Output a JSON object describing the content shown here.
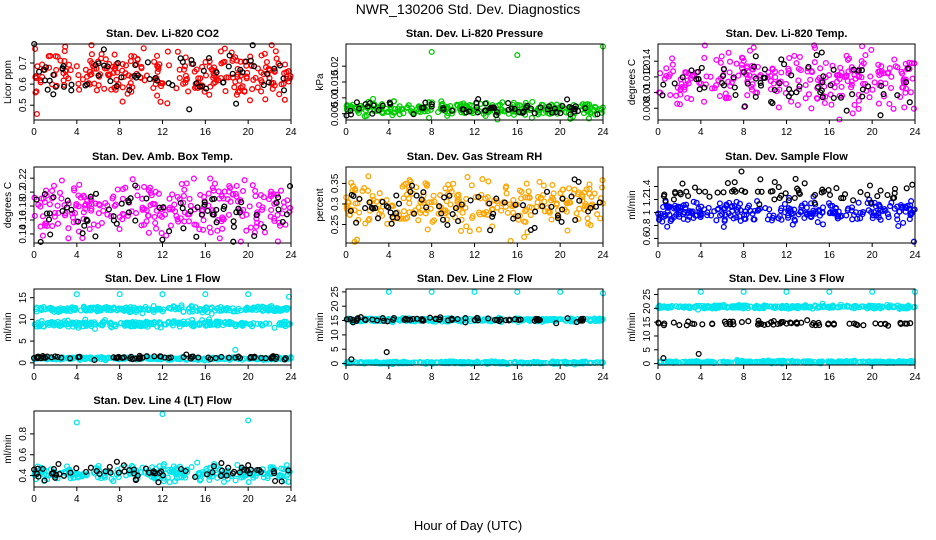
{
  "figure": {
    "title": "NWR_130206 Std. Dev. Diagnostics",
    "xlabel": "Hour of Day (UTC)"
  },
  "chart_data": [
    {
      "type": "scatter",
      "title": "Stan. Dev. Li-820 CO2",
      "ylabel": "Licor ppm",
      "xlim": [
        0,
        24
      ],
      "xticks": [
        0,
        4,
        8,
        12,
        16,
        20,
        24
      ],
      "ylim": [
        0.43,
        0.79
      ],
      "yticks": [
        0.5,
        0.6,
        0.7
      ],
      "series": [
        {
          "color": "#ff0000",
          "bands": [
            {
              "center": 0.65,
              "spread": 0.055
            }
          ]
        },
        {
          "color": "#000000",
          "bands": [
            {
              "center": 0.64,
              "spread": 0.055
            }
          ]
        }
      ]
    },
    {
      "type": "scatter",
      "title": "Stan. Dev. Li-820 Pressure",
      "ylabel": "kPa",
      "xlim": [
        0,
        24
      ],
      "xticks": [
        0,
        4,
        8,
        12,
        16,
        20,
        24
      ],
      "ylim": [
        0.003,
        0.027
      ],
      "yticks": [
        0.005,
        0.01,
        0.015,
        0.02
      ],
      "series": [
        {
          "color": "#00cc00",
          "bands": [
            {
              "center": 0.0063,
              "spread": 0.0011
            }
          ]
        },
        {
          "color": "#000000",
          "bands": [
            {
              "center": 0.0066,
              "spread": 0.0012
            }
          ]
        }
      ],
      "outliers": [
        {
          "x": 8.0,
          "y": 0.0245,
          "color": "#00cc00"
        },
        {
          "x": 16.0,
          "y": 0.0235,
          "color": "#00cc00"
        },
        {
          "x": 24.0,
          "y": 0.0262,
          "color": "#00cc00"
        }
      ]
    },
    {
      "type": "scatter",
      "title": "Stan. Dev. Li-820 Temp.",
      "ylabel": "degrees C",
      "xlim": [
        0,
        24
      ],
      "xticks": [
        0,
        4,
        8,
        12,
        16,
        20,
        24
      ],
      "ylim": [
        0.0065,
        0.0162
      ],
      "yticks": [
        0.008,
        0.01,
        0.012,
        0.014
      ],
      "series": [
        {
          "color": "#ff00ff",
          "bands": [
            {
              "center": 0.0117,
              "spread": 0.0018
            }
          ]
        },
        {
          "color": "#000000",
          "bands": [
            {
              "center": 0.0113,
              "spread": 0.0016
            }
          ]
        }
      ]
    },
    {
      "type": "scatter",
      "title": "Stan. Dev. Amb. Box Temp.",
      "ylabel": "degrees C",
      "xlim": [
        0,
        24
      ],
      "xticks": [
        0,
        4,
        8,
        12,
        16,
        20,
        24
      ],
      "ylim": [
        0.127,
        0.236
      ],
      "yticks": [
        0.14,
        0.16,
        0.18,
        0.2,
        0.22
      ],
      "series": [
        {
          "color": "#ff00ff",
          "bands": [
            {
              "center": 0.174,
              "spread": 0.02
            }
          ]
        },
        {
          "color": "#000000",
          "bands": [
            {
              "center": 0.17,
              "spread": 0.018
            }
          ]
        }
      ]
    },
    {
      "type": "scatter",
      "title": "Stan. Dev. Gas Stream RH",
      "ylabel": "percent",
      "xlim": [
        0,
        24
      ],
      "xticks": [
        0,
        4,
        8,
        12,
        16,
        20,
        24
      ],
      "ylim": [
        0.205,
        0.39
      ],
      "yticks": [
        0.25,
        0.3,
        0.35
      ],
      "series": [
        {
          "color": "#ffa500",
          "bands": [
            {
              "center": 0.298,
              "spread": 0.03
            }
          ]
        },
        {
          "color": "#000000",
          "bands": [
            {
              "center": 0.295,
              "spread": 0.025
            }
          ]
        }
      ]
    },
    {
      "type": "scatter",
      "title": "Stan. Dev. Sample Flow",
      "ylabel": "ml/min",
      "xlim": [
        0,
        24
      ],
      "xticks": [
        0,
        4,
        8,
        12,
        16,
        20,
        24
      ],
      "ylim": [
        0.53,
        1.7
      ],
      "yticks": [
        0.6,
        0.8,
        1.0,
        1.2,
        1.4
      ],
      "series": [
        {
          "color": "#0000ff",
          "bands": [
            {
              "center": 1.0,
              "spread": 0.09
            }
          ]
        },
        {
          "color": "#000000",
          "bands": [
            {
              "center": 1.3,
              "spread": 0.1
            }
          ]
        }
      ],
      "outliers": [
        {
          "x": 7.8,
          "y": 1.63,
          "color": "#000000"
        },
        {
          "x": 23.9,
          "y": 0.55,
          "color": "#0000ff"
        }
      ]
    },
    {
      "type": "scatter",
      "title": "Stan. Dev. Line 1 Flow",
      "ylabel": "ml/min",
      "xlim": [
        0,
        24
      ],
      "xticks": [
        0,
        4,
        8,
        12,
        16,
        20,
        24
      ],
      "ylim": [
        -0.5,
        17
      ],
      "yticks": [
        0,
        5,
        10,
        15
      ],
      "series": [
        {
          "color": "#00e5ee",
          "bands": [
            {
              "center": 12.3,
              "spread": 0.3
            },
            {
              "center": 9.0,
              "spread": 0.35
            },
            {
              "center": 1.0,
              "spread": 0.15
            }
          ]
        },
        {
          "color": "#000000",
          "bands": [
            {
              "center": 1.2,
              "spread": 0.2
            }
          ]
        }
      ],
      "outliers": [
        {
          "x": 4.0,
          "y": 15.8,
          "color": "#00e5ee"
        },
        {
          "x": 8.0,
          "y": 15.8,
          "color": "#00e5ee"
        },
        {
          "x": 12.0,
          "y": 15.8,
          "color": "#00e5ee"
        },
        {
          "x": 16.0,
          "y": 15.8,
          "color": "#00e5ee"
        },
        {
          "x": 20.0,
          "y": 15.8,
          "color": "#00e5ee"
        },
        {
          "x": 23.8,
          "y": 15.2,
          "color": "#00e5ee"
        },
        {
          "x": 18.8,
          "y": 3.0,
          "color": "#00e5ee"
        }
      ]
    },
    {
      "type": "scatter",
      "title": "Stan. Dev. Line 2 Flow",
      "ylabel": "ml/min",
      "xlim": [
        0,
        24
      ],
      "xticks": [
        0,
        4,
        8,
        12,
        16,
        20,
        24
      ],
      "ylim": [
        -0.5,
        26
      ],
      "yticks": [
        0,
        5,
        10,
        15,
        20,
        25
      ],
      "series": [
        {
          "color": "#00e5ee",
          "bands": [
            {
              "center": 15.2,
              "spread": 0.3
            },
            {
              "center": 0.3,
              "spread": 0.2
            }
          ]
        },
        {
          "color": "#000000",
          "bands": [
            {
              "center": 15.3,
              "spread": 0.4
            }
          ]
        }
      ],
      "outliers": [
        {
          "x": 4.0,
          "y": 25.0,
          "color": "#00e5ee"
        },
        {
          "x": 8.0,
          "y": 25.0,
          "color": "#00e5ee"
        },
        {
          "x": 12.0,
          "y": 25.0,
          "color": "#00e5ee"
        },
        {
          "x": 16.0,
          "y": 25.0,
          "color": "#00e5ee"
        },
        {
          "x": 20.0,
          "y": 25.0,
          "color": "#00e5ee"
        },
        {
          "x": 24.0,
          "y": 24.5,
          "color": "#00e5ee"
        },
        {
          "x": 3.8,
          "y": 4.0,
          "color": "#000000"
        },
        {
          "x": 0.5,
          "y": 1.5,
          "color": "#000000"
        }
      ]
    },
    {
      "type": "scatter",
      "title": "Stan. Dev. Line 3 Flow",
      "ylabel": "ml/min",
      "xlim": [
        0,
        24
      ],
      "xticks": [
        0,
        4,
        8,
        12,
        16,
        20,
        24
      ],
      "ylim": [
        -0.5,
        27
      ],
      "yticks": [
        0,
        5,
        10,
        15,
        20,
        25
      ],
      "series": [
        {
          "color": "#00e5ee",
          "bands": [
            {
              "center": 20.5,
              "spread": 0.3
            },
            {
              "center": 0.6,
              "spread": 0.2
            }
          ]
        },
        {
          "color": "#000000",
          "bands": [
            {
              "center": 14.5,
              "spread": 0.5
            }
          ]
        }
      ],
      "outliers": [
        {
          "x": 4.0,
          "y": 26.0,
          "color": "#00e5ee"
        },
        {
          "x": 8.0,
          "y": 26.0,
          "color": "#00e5ee"
        },
        {
          "x": 12.0,
          "y": 26.0,
          "color": "#00e5ee"
        },
        {
          "x": 16.0,
          "y": 26.0,
          "color": "#00e5ee"
        },
        {
          "x": 20.0,
          "y": 26.0,
          "color": "#00e5ee"
        },
        {
          "x": 24.0,
          "y": 26.0,
          "color": "#00e5ee"
        },
        {
          "x": 3.8,
          "y": 3.5,
          "color": "#000000"
        },
        {
          "x": 0.5,
          "y": 2.0,
          "color": "#000000"
        }
      ]
    },
    {
      "type": "scatter",
      "title": "Stan. Dev. Line 4 (LT) Flow",
      "ylabel": "ml/min",
      "xlim": [
        0,
        24
      ],
      "xticks": [
        0,
        4,
        8,
        12,
        16,
        20,
        24
      ],
      "ylim": [
        0.29,
        1.02
      ],
      "yticks": [
        0.4,
        0.6,
        0.8
      ],
      "series": [
        {
          "color": "#00e5ee",
          "bands": [
            {
              "center": 0.42,
              "spread": 0.035
            }
          ]
        },
        {
          "color": "#000000",
          "bands": [
            {
              "center": 0.43,
              "spread": 0.04
            }
          ]
        }
      ],
      "outliers": [
        {
          "x": 12.0,
          "y": 0.99,
          "color": "#00e5ee"
        },
        {
          "x": 4.0,
          "y": 0.91,
          "color": "#00e5ee"
        },
        {
          "x": 20.0,
          "y": 0.93,
          "color": "#00e5ee"
        }
      ]
    }
  ]
}
